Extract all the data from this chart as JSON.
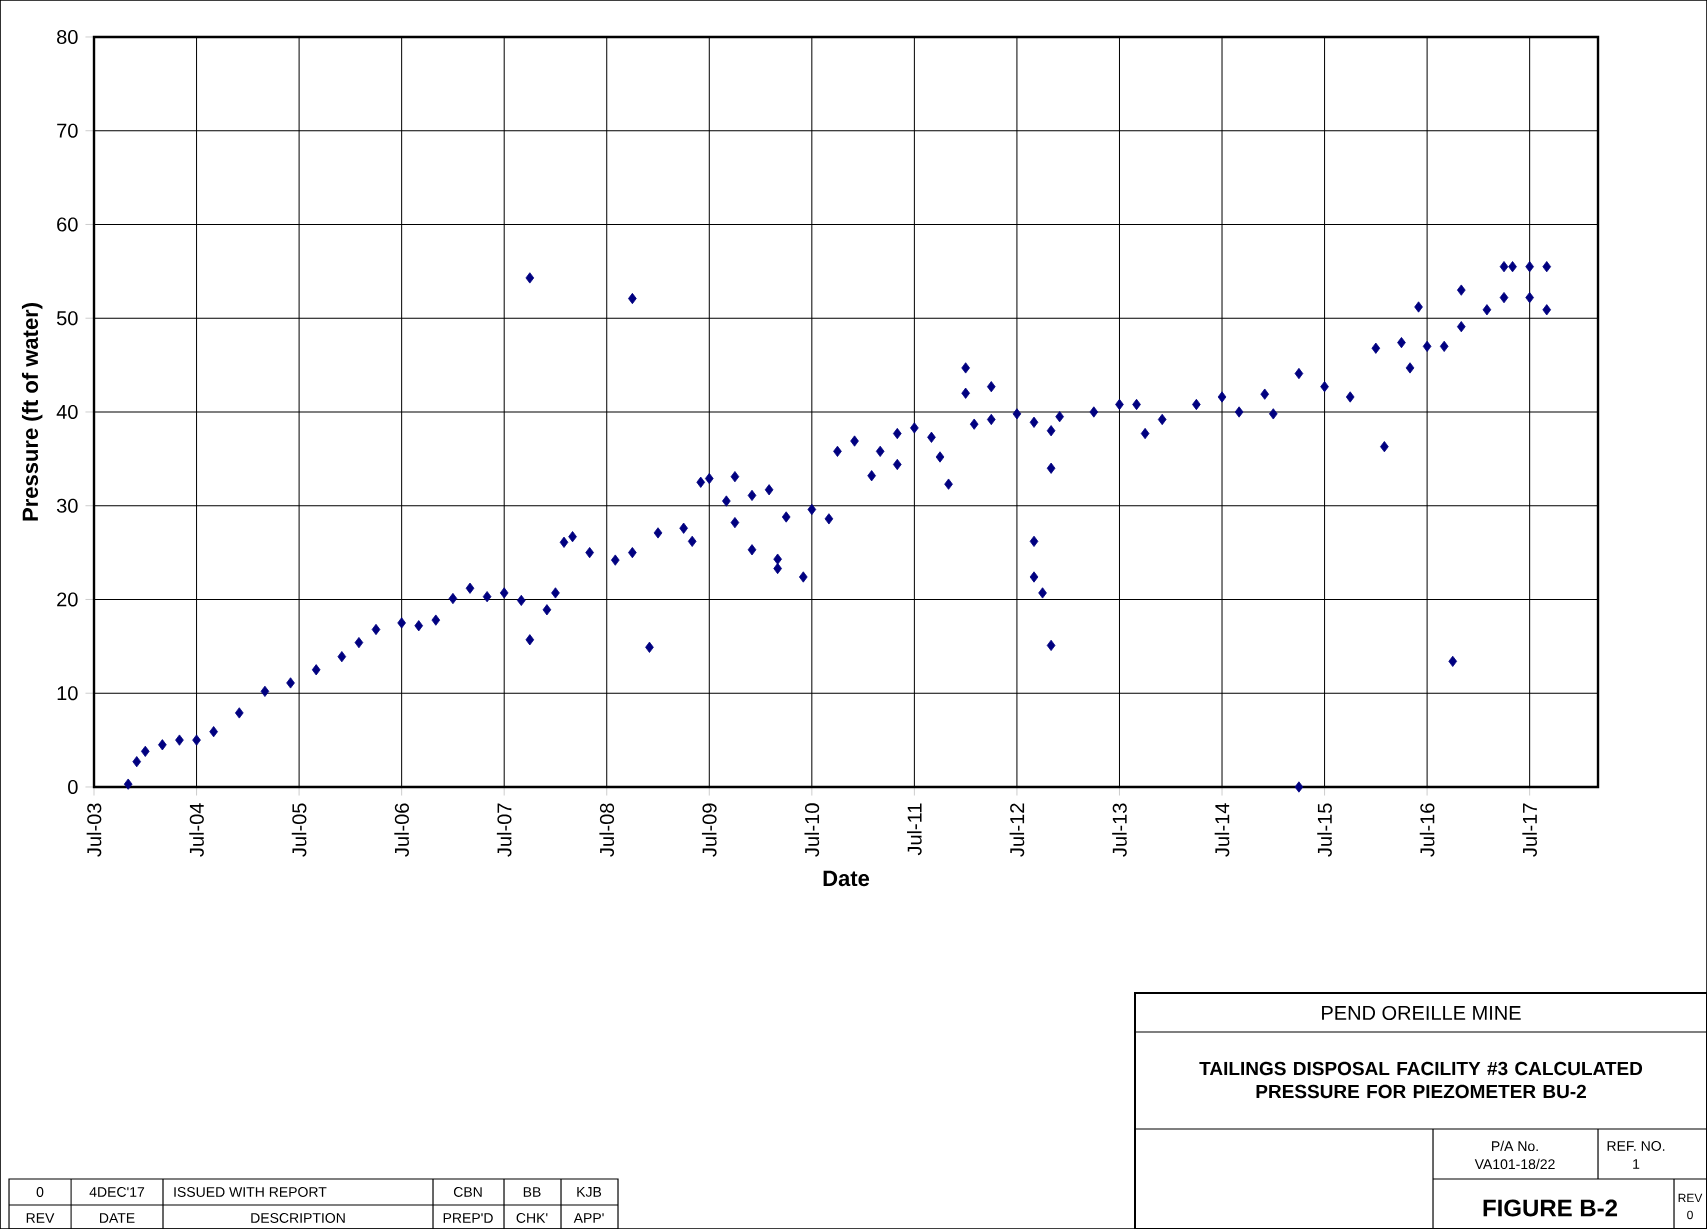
{
  "chart_data": {
    "type": "scatter",
    "title": "TAILINGS DISPOSAL FACILITY #3 CALCULATED PRESSURE FOR PIEZOMETER BU-2",
    "subtitle": "PEND OREILLE MINE",
    "xlabel": "Date",
    "ylabel": "Pressure (ft of water)",
    "x": [
      "2003-11",
      "2003-12",
      "2004-01",
      "2004-03",
      "2004-05",
      "2004-07",
      "2004-09",
      "2004-12",
      "2005-03",
      "2005-06",
      "2005-09",
      "2005-12",
      "2006-02",
      "2006-04",
      "2006-07",
      "2006-09",
      "2006-11",
      "2007-01",
      "2007-03",
      "2007-05",
      "2007-07",
      "2007-09",
      "2007-12",
      "2008-01",
      "2008-02",
      "2008-03",
      "2008-05",
      "2008-08",
      "2008-10",
      "2009-01",
      "2009-04",
      "2009-05",
      "2009-06",
      "2009-07",
      "2009-09",
      "2009-10",
      "2009-10",
      "2009-12",
      "2010-02",
      "2010-04",
      "2010-07",
      "2010-09",
      "2010-10",
      "2010-12",
      "2011-03",
      "2011-05",
      "2011-07",
      "2011-09",
      "2011-10",
      "2011-11",
      "2012-01",
      "2012-01",
      "2012-02",
      "2012-04",
      "2012-04",
      "2012-07",
      "2012-09",
      "2012-09",
      "2012-09",
      "2012-10",
      "2012-11",
      "2012-11",
      "2012-12",
      "2013-04",
      "2013-07",
      "2013-09",
      "2013-10",
      "2013-12",
      "2014-04",
      "2014-07",
      "2014-09",
      "2014-12",
      "2015-01",
      "2015-04",
      "2015-07",
      "2015-10",
      "2016-01",
      "2016-04",
      "2016-07",
      "2016-09",
      "2016-11",
      "2017-02",
      "2017-04",
      "2017-07",
      "2017-09",
      "2007-10",
      "2007-10",
      "2008-10",
      "2008-12",
      "2009-12",
      "2010-03",
      "2010-03",
      "2010-06",
      "2011-02",
      "2011-05",
      "2012-11",
      "2015-04",
      "2016-02",
      "2016-05",
      "2016-06",
      "2016-10",
      "2016-11",
      "2017-04",
      "2017-05",
      "2017-07",
      "2017-09"
    ],
    "values": [
      0.3,
      2.7,
      3.8,
      4.5,
      5,
      5,
      5.9,
      7.9,
      10.2,
      11.1,
      12.5,
      13.9,
      15.4,
      16.8,
      17.5,
      17.2,
      17.8,
      20.1,
      21.2,
      20.3,
      20.7,
      19.9,
      18.9,
      20.7,
      26.1,
      26.7,
      25,
      24.2,
      25,
      27.1,
      27.6,
      26.2,
      32.5,
      32.9,
      30.5,
      28.2,
      33.1,
      31.1,
      31.7,
      28.8,
      29.6,
      28.6,
      35.8,
      36.9,
      35.8,
      37.7,
      38.3,
      37.3,
      35.2,
      32.3,
      44.7,
      42,
      38.7,
      39.2,
      42.7,
      39.8,
      38.9,
      26.2,
      22.4,
      20.7,
      34,
      38,
      39.5,
      40,
      40.8,
      40.8,
      37.7,
      39.2,
      40.8,
      41.6,
      40,
      41.9,
      39.8,
      44.1,
      42.7,
      41.6,
      46.8,
      47.4,
      47,
      47,
      49.1,
      50.9,
      52.2,
      52.2,
      50.9,
      54.3,
      15.7,
      52.1,
      14.9,
      25.3,
      24.3,
      23.3,
      22.4,
      33.2,
      34.4,
      15.1,
      0,
      36.3,
      44.7,
      51.2,
      13.4,
      53,
      55.5,
      55.5,
      55.5,
      55.5
    ],
    "color": "#000080",
    "marker": "diamond",
    "xlim": [
      "2003-07",
      "2018-03"
    ],
    "xticks": [
      {
        "value": "2003-07",
        "label": "Jul-03"
      },
      {
        "value": "2004-07",
        "label": "Jul-04"
      },
      {
        "value": "2005-07",
        "label": "Jul-05"
      },
      {
        "value": "2006-07",
        "label": "Jul-06"
      },
      {
        "value": "2007-07",
        "label": "Jul-07"
      },
      {
        "value": "2008-07",
        "label": "Jul-08"
      },
      {
        "value": "2009-07",
        "label": "Jul-09"
      },
      {
        "value": "2010-07",
        "label": "Jul-10"
      },
      {
        "value": "2011-07",
        "label": "Jul-11"
      },
      {
        "value": "2012-07",
        "label": "Jul-12"
      },
      {
        "value": "2013-07",
        "label": "Jul-13"
      },
      {
        "value": "2014-07",
        "label": "Jul-14"
      },
      {
        "value": "2015-07",
        "label": "Jul-15"
      },
      {
        "value": "2016-07",
        "label": "Jul-16"
      },
      {
        "value": "2017-07",
        "label": "Jul-17"
      }
    ],
    "ylim": [
      0,
      80
    ],
    "yticks": [
      0,
      10,
      20,
      30,
      40,
      50,
      60,
      70,
      80
    ],
    "grid": true,
    "annotations": [
      "0",
      "4DEC'17",
      "ISSUED WITH REPORT",
      "CBN",
      "BB",
      "KJB",
      "REV",
      "DATE",
      "DESCRIPTION",
      "PREP'D",
      "CHK'",
      "APP'",
      "P/A No.",
      "VA101-18/22",
      "REF. NO.",
      "1",
      "FIGURE B-2",
      "REV",
      "0"
    ]
  }
}
